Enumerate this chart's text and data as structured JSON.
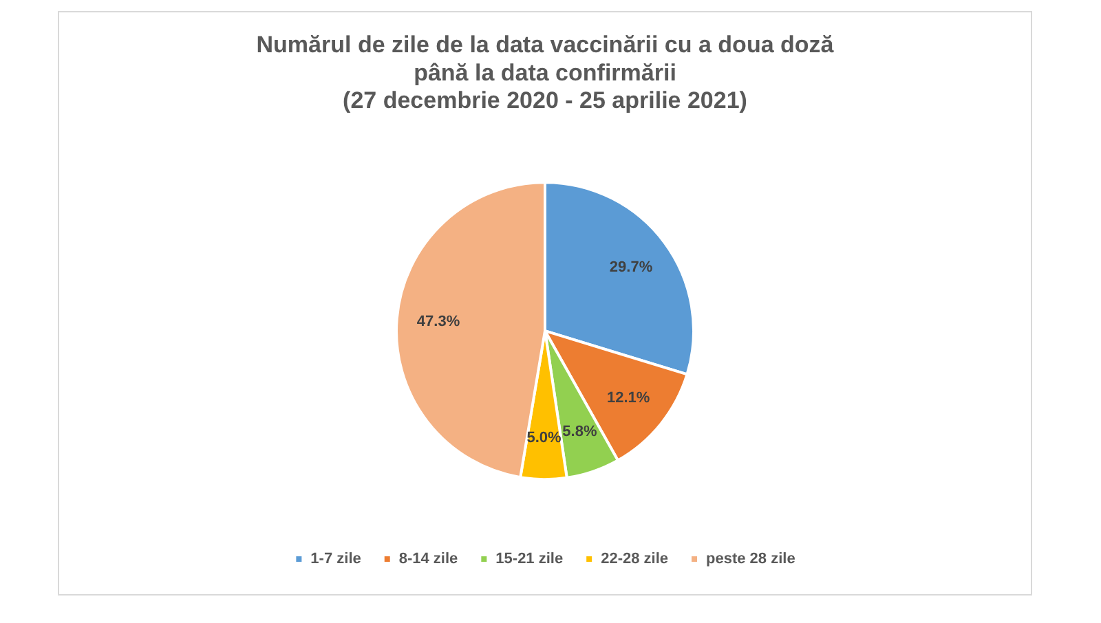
{
  "chart_data": {
    "type": "pie",
    "title": "Numărul de zile de la data vaccinării cu a doua doză\npână la data confirmării\n(27 decembrie 2020 - 25 aprilie 2021)",
    "categories": [
      "1-7 zile",
      "8-14 zile",
      "15-21 zile",
      "22-28 zile",
      "peste 28 zile"
    ],
    "values": [
      29.7,
      12.1,
      5.8,
      5.0,
      47.3
    ],
    "value_labels": [
      "29.7%",
      "12.1%",
      "5.8%",
      "5.0%",
      "47.3%"
    ],
    "colors": [
      "#5b9bd5",
      "#ed7d31",
      "#92d050",
      "#ffc000",
      "#f4b183"
    ],
    "legend": "bottom"
  }
}
